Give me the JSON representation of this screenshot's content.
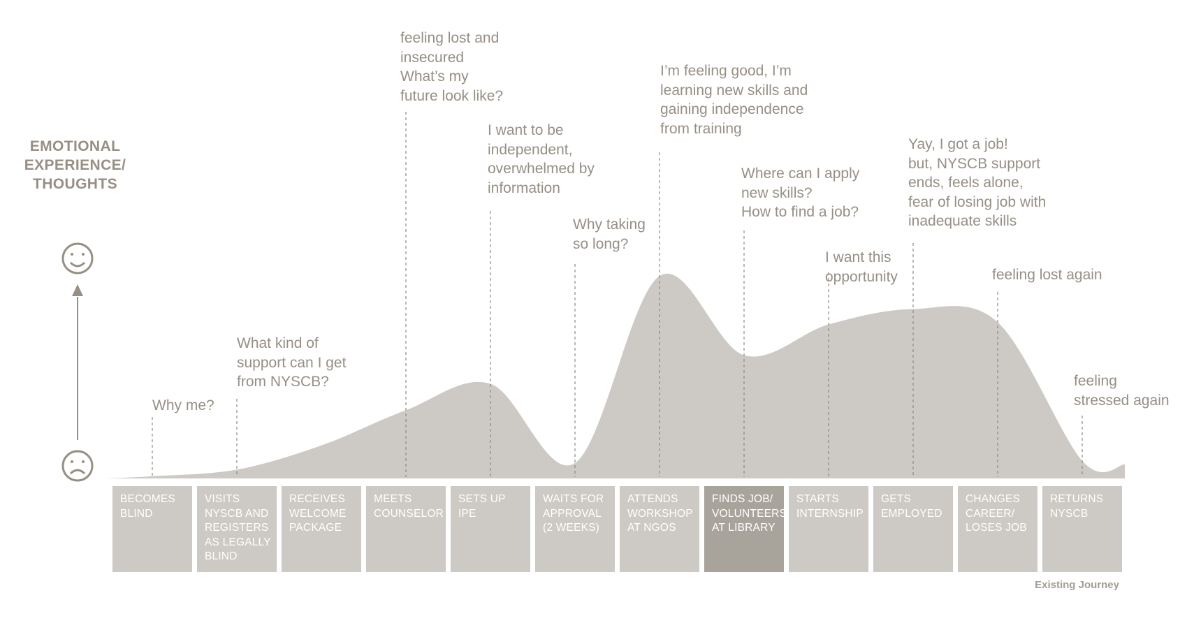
{
  "axis": {
    "title": "EMOTIONAL\nEXPERIENCE/\nTHOUGHTS",
    "top_icon": "happy-face-icon",
    "bottom_icon": "sad-face-icon"
  },
  "stages": [
    {
      "label": "BECOMES\nBLIND",
      "level": 0.01,
      "thought": "Why me?"
    },
    {
      "label": "VISITS\nNYSCB AND\nREGISTERS\nAS LEGALLY\nBLIND",
      "level": 0.04,
      "thought": "What kind of\nsupport can I get\nfrom NYSCB?"
    },
    {
      "label": "RECEIVES\nWELCOME\nPACKAGE",
      "level": 0.15,
      "thought": ""
    },
    {
      "label": "MEETS\nCOUNSELOR",
      "level": 0.31,
      "thought": "feeling lost and\ninsecured\nWhat’s my\nfuture look like?"
    },
    {
      "label": "SETS UP\nIPE",
      "level": 0.43,
      "thought": "I want to be\nindependent,\noverwhelmed by\ninformation"
    },
    {
      "label": "WAITS FOR\nAPPROVAL\n(2 weeks)",
      "level": 0.07,
      "thought": "Why taking\nso long?"
    },
    {
      "label": "ATTENDS\nWORKSHOP\nAT NGOS",
      "level": 0.92,
      "thought": "I’m feeling good, I’m\nlearning new skills and\ngaining independence\nfrom training"
    },
    {
      "label": "FINDS JOB/\nVOLUNTEERS\nAT LIBRARY",
      "level": 0.56,
      "thought": "Where can I apply\nnew skills?\nHow to find a job?",
      "highlighted": true
    },
    {
      "label": "STARTS\nINTERNSHIP",
      "level": 0.7,
      "thought": "I want this\nopportunity"
    },
    {
      "label": "GETS\nEMPLOYED",
      "level": 0.77,
      "thought": "Yay, I got a job!\nbut, NYSCB support\nends, feels alone,\nfear of losing job with\ninadequate skills"
    },
    {
      "label": "CHANGES\nCAREER/\nLOSES JOB",
      "level": 0.71,
      "thought": "feeling lost again"
    },
    {
      "label": "RETURNS\nNYSCB",
      "level": 0.08,
      "thought": "feeling\nstressed again"
    }
  ],
  "footer": {
    "label": "Existing Journey"
  },
  "colors": {
    "curve": "#cdc9c4",
    "stage": "#cdc9c4",
    "stage_active": "#a8a49c",
    "text": "#968f85",
    "icon": "#978f84"
  }
}
